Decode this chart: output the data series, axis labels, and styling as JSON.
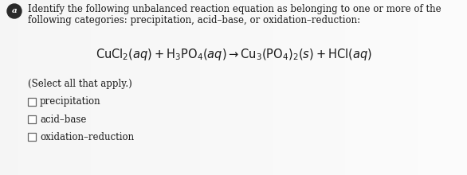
{
  "background_color": "#ebebeb",
  "text_color": "#1a1a1a",
  "circle_color": "#2a2a2a",
  "label_letter": "a",
  "line1": "Identify the following unbalanced reaction equation as belonging to one or more of the",
  "line2": "following categories: precipitation, acid–base, or oxidation–reduction:",
  "select_text": "(Select all that apply.)",
  "options": [
    "precipitation",
    "acid–base",
    "oxidation–reduction"
  ],
  "font_size_body": 8.5,
  "font_size_eq": 10.5,
  "fig_width": 5.86,
  "fig_height": 2.2,
  "dpi": 100
}
